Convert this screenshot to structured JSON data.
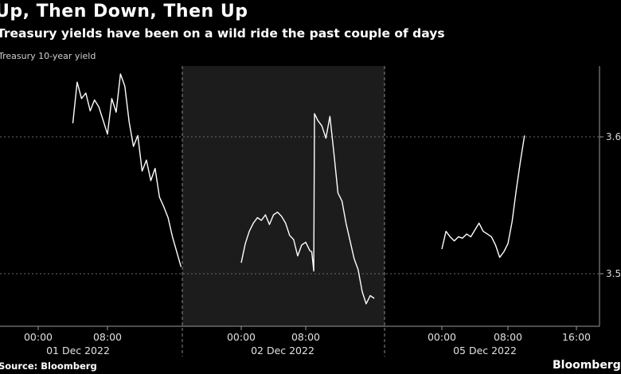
{
  "header": {
    "title": "Up, Then Down, Then Up",
    "subtitle": "Treasury yields have been on a wild ride the past couple of days"
  },
  "footer": {
    "source": "Source: Bloomberg",
    "brand": "Bloomberg"
  },
  "chart_data": {
    "type": "line",
    "series_label": "Treasury 10-year yield",
    "ylim": [
      3.475,
      3.675
    ],
    "y_ticks": [
      3.5,
      3.6
    ],
    "y_tick_labels": [
      "3.5",
      "3.6"
    ],
    "x_tick_labels": [
      "00:00",
      "08:00",
      "00:00",
      "08:00",
      "00:00",
      "08:00",
      "16:00"
    ],
    "day_labels": [
      "01 Dec 2022",
      "02 Dec 2022",
      "05 Dec 2022"
    ],
    "shaded_session": "02 Dec 2022",
    "grid": true,
    "series": [
      {
        "name": "Treasury 10-year yield",
        "points": [
          [
            "01 Dec 04:00",
            3.61
          ],
          [
            "01 Dec 04:30",
            3.64
          ],
          [
            "01 Dec 05:00",
            3.628
          ],
          [
            "01 Dec 05:30",
            3.632
          ],
          [
            "01 Dec 06:00",
            3.619
          ],
          [
            "01 Dec 06:30",
            3.627
          ],
          [
            "01 Dec 07:00",
            3.622
          ],
          [
            "01 Dec 07:30",
            3.612
          ],
          [
            "01 Dec 08:00",
            3.602
          ],
          [
            "01 Dec 08:30",
            3.628
          ],
          [
            "01 Dec 09:00",
            3.618
          ],
          [
            "01 Dec 09:30",
            3.646
          ],
          [
            "01 Dec 10:00",
            3.637
          ],
          [
            "01 Dec 10:30",
            3.611
          ],
          [
            "01 Dec 11:00",
            3.593
          ],
          [
            "01 Dec 11:30",
            3.601
          ],
          [
            "01 Dec 12:00",
            3.575
          ],
          [
            "01 Dec 12:30",
            3.583
          ],
          [
            "01 Dec 13:00",
            3.568
          ],
          [
            "01 Dec 13:30",
            3.577
          ],
          [
            "01 Dec 14:00",
            3.556
          ],
          [
            "01 Dec 14:30",
            3.549
          ],
          [
            "01 Dec 15:00",
            3.541
          ],
          [
            "01 Dec 15:30",
            3.527
          ],
          [
            "01 Dec 16:00",
            3.516
          ],
          [
            "01 Dec 16:30",
            3.505
          ]
        ]
      },
      {
        "name": "Treasury 10-year yield",
        "points": [
          [
            "02 Dec 00:00",
            3.508
          ],
          [
            "02 Dec 00:30",
            3.522
          ],
          [
            "02 Dec 01:00",
            3.531
          ],
          [
            "02 Dec 01:30",
            3.537
          ],
          [
            "02 Dec 02:00",
            3.541
          ],
          [
            "02 Dec 02:30",
            3.539
          ],
          [
            "02 Dec 03:00",
            3.543
          ],
          [
            "02 Dec 03:30",
            3.536
          ],
          [
            "02 Dec 04:00",
            3.543
          ],
          [
            "02 Dec 04:30",
            3.545
          ],
          [
            "02 Dec 05:00",
            3.542
          ],
          [
            "02 Dec 05:30",
            3.537
          ],
          [
            "02 Dec 06:00",
            3.528
          ],
          [
            "02 Dec 06:30",
            3.525
          ],
          [
            "02 Dec 07:00",
            3.513
          ],
          [
            "02 Dec 07:30",
            3.521
          ],
          [
            "02 Dec 08:00",
            3.523
          ],
          [
            "02 Dec 08:30",
            3.517
          ],
          [
            "02 Dec 08:45",
            3.516
          ],
          [
            "02 Dec 09:00",
            3.502
          ],
          [
            "02 Dec 09:05",
            3.617
          ],
          [
            "02 Dec 09:30",
            3.612
          ],
          [
            "02 Dec 10:00",
            3.608
          ],
          [
            "02 Dec 10:30",
            3.599
          ],
          [
            "02 Dec 11:00",
            3.615
          ],
          [
            "02 Dec 11:30",
            3.588
          ],
          [
            "02 Dec 12:00",
            3.559
          ],
          [
            "02 Dec 12:30",
            3.553
          ],
          [
            "02 Dec 13:00",
            3.537
          ],
          [
            "02 Dec 13:30",
            3.524
          ],
          [
            "02 Dec 14:00",
            3.511
          ],
          [
            "02 Dec 14:30",
            3.503
          ],
          [
            "02 Dec 15:00",
            3.487
          ],
          [
            "02 Dec 15:30",
            3.478
          ],
          [
            "02 Dec 16:00",
            3.484
          ],
          [
            "02 Dec 16:30",
            3.482
          ]
        ]
      },
      {
        "name": "Treasury 10-year yield",
        "points": [
          [
            "05 Dec 00:00",
            3.518
          ],
          [
            "05 Dec 00:30",
            3.531
          ],
          [
            "05 Dec 01:00",
            3.527
          ],
          [
            "05 Dec 01:30",
            3.524
          ],
          [
            "05 Dec 02:00",
            3.527
          ],
          [
            "05 Dec 02:30",
            3.526
          ],
          [
            "05 Dec 03:00",
            3.529
          ],
          [
            "05 Dec 03:30",
            3.527
          ],
          [
            "05 Dec 04:00",
            3.532
          ],
          [
            "05 Dec 04:30",
            3.537
          ],
          [
            "05 Dec 05:00",
            3.531
          ],
          [
            "05 Dec 05:30",
            3.529
          ],
          [
            "05 Dec 06:00",
            3.527
          ],
          [
            "05 Dec 06:30",
            3.521
          ],
          [
            "05 Dec 07:00",
            3.512
          ],
          [
            "05 Dec 07:30",
            3.516
          ],
          [
            "05 Dec 08:00",
            3.522
          ],
          [
            "05 Dec 08:30",
            3.538
          ],
          [
            "05 Dec 09:00",
            3.561
          ],
          [
            "05 Dec 09:30",
            3.582
          ],
          [
            "05 Dec 10:00",
            3.601
          ]
        ]
      }
    ]
  }
}
